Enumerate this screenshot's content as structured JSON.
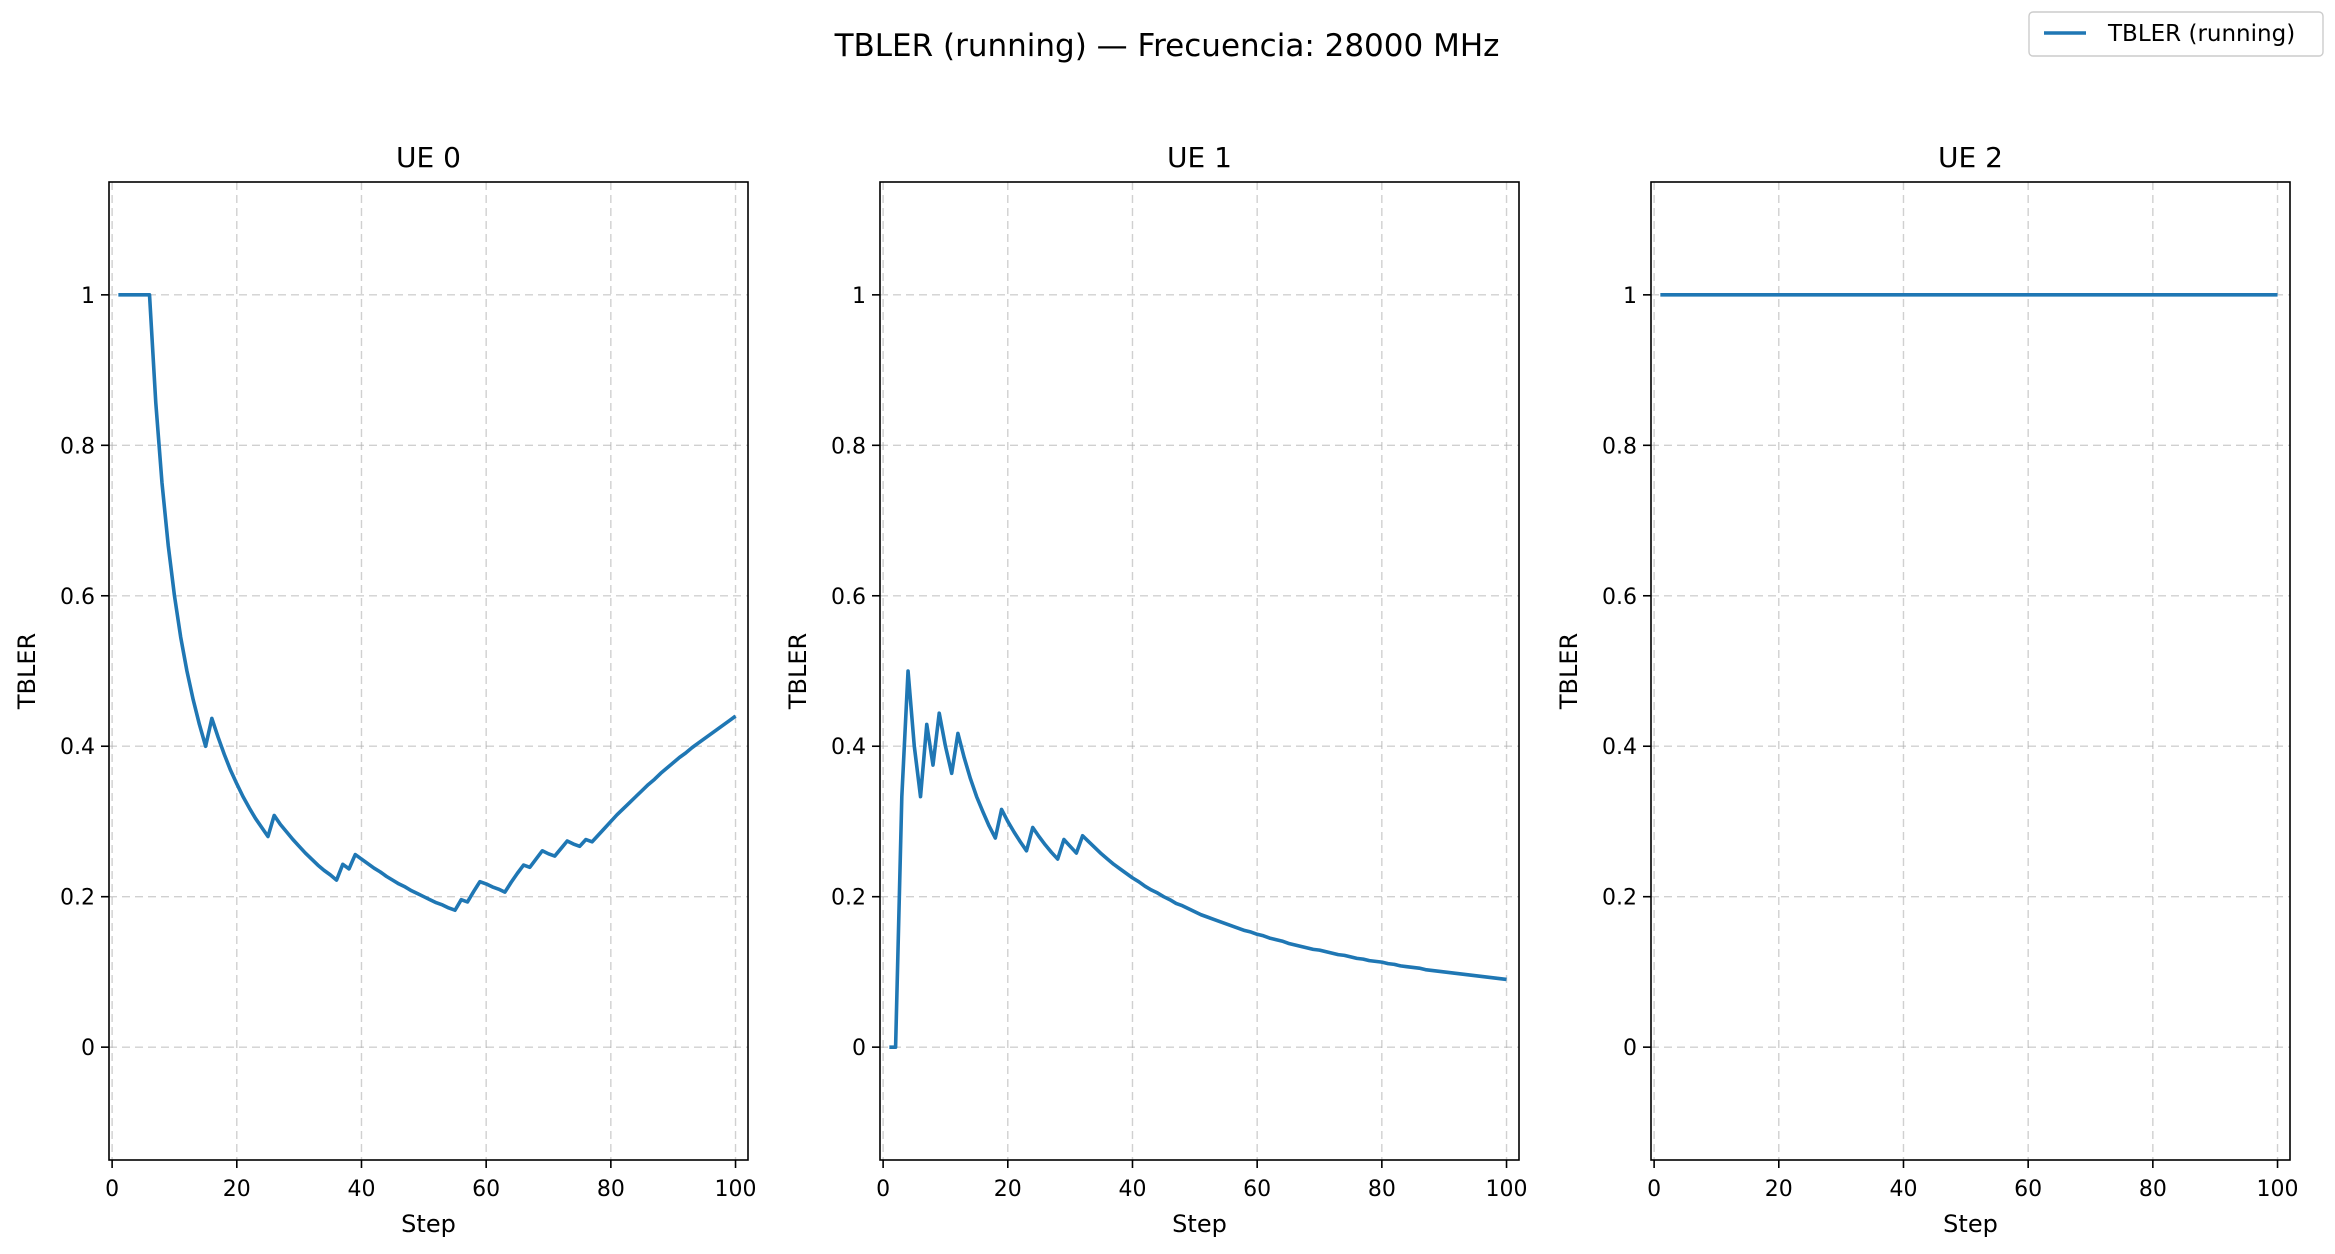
{
  "figure": {
    "title": "TBLER (running) — Frecuencia: 28000 MHz",
    "legend": {
      "label": "TBLER (running)",
      "placement": "upper-right"
    }
  },
  "colors": {
    "series": "#1f77b4",
    "grid": "#b0b0b0",
    "axes": "#000000"
  },
  "chart_data": [
    {
      "type": "line",
      "title": "UE 0",
      "xlabel": "Step",
      "ylabel": "TBLER",
      "xlim": [
        -0.5,
        102
      ],
      "ylim": [
        -0.15,
        1.15
      ],
      "xticks": [
        0,
        20,
        40,
        60,
        80,
        100
      ],
      "yticks": [
        0.0,
        0.2,
        0.4,
        0.6,
        0.8,
        1.0
      ],
      "grid": true,
      "series": [
        {
          "name": "TBLER (running)",
          "x": [
            1,
            2,
            3,
            4,
            5,
            6,
            7,
            8,
            9,
            10,
            11,
            12,
            13,
            14,
            15,
            16,
            17,
            18,
            19,
            20,
            21,
            22,
            23,
            24,
            25,
            26,
            27,
            28,
            29,
            30,
            31,
            32,
            33,
            34,
            35,
            36,
            37,
            38,
            39,
            40,
            41,
            42,
            43,
            44,
            45,
            46,
            47,
            48,
            49,
            50,
            51,
            52,
            53,
            54,
            55,
            56,
            57,
            58,
            59,
            60,
            61,
            62,
            63,
            64,
            65,
            66,
            67,
            68,
            69,
            70,
            71,
            72,
            73,
            74,
            75,
            76,
            77,
            78,
            79,
            80,
            81,
            82,
            83,
            84,
            85,
            86,
            87,
            88,
            89,
            90,
            91,
            92,
            93,
            94,
            95,
            96,
            97,
            98,
            99,
            100
          ],
          "y": [
            1.0,
            1.0,
            1.0,
            1.0,
            1.0,
            1.0,
            0.857,
            0.75,
            0.667,
            0.6,
            0.545,
            0.5,
            0.462,
            0.429,
            0.4,
            0.437,
            0.412,
            0.389,
            0.368,
            0.35,
            0.333,
            0.318,
            0.304,
            0.292,
            0.28,
            0.308,
            0.296,
            0.286,
            0.276,
            0.267,
            0.258,
            0.25,
            0.242,
            0.235,
            0.229,
            0.222,
            0.243,
            0.237,
            0.256,
            0.25,
            0.244,
            0.238,
            0.233,
            0.227,
            0.222,
            0.217,
            0.213,
            0.208,
            0.204,
            0.2,
            0.196,
            0.192,
            0.189,
            0.185,
            0.182,
            0.196,
            0.193,
            0.207,
            0.22,
            0.217,
            0.213,
            0.21,
            0.206,
            0.219,
            0.231,
            0.242,
            0.239,
            0.25,
            0.261,
            0.257,
            0.254,
            0.264,
            0.274,
            0.27,
            0.267,
            0.276,
            0.273,
            0.282,
            0.291,
            0.3,
            0.309,
            0.317,
            0.325,
            0.333,
            0.341,
            0.349,
            0.356,
            0.364,
            0.371,
            0.378,
            0.385,
            0.391,
            0.398,
            0.404,
            0.41,
            0.416,
            0.422,
            0.428,
            0.434,
            0.44
          ]
        }
      ]
    },
    {
      "type": "line",
      "title": "UE 1",
      "xlabel": "Step",
      "ylabel": "TBLER",
      "xlim": [
        -0.5,
        102
      ],
      "ylim": [
        -0.15,
        1.15
      ],
      "xticks": [
        0,
        20,
        40,
        60,
        80,
        100
      ],
      "yticks": [
        0.0,
        0.2,
        0.4,
        0.6,
        0.8,
        1.0
      ],
      "grid": true,
      "series": [
        {
          "name": "TBLER (running)",
          "x": [
            1,
            2,
            3,
            4,
            5,
            6,
            7,
            8,
            9,
            10,
            11,
            12,
            13,
            14,
            15,
            16,
            17,
            18,
            19,
            20,
            21,
            22,
            23,
            24,
            25,
            26,
            27,
            28,
            29,
            30,
            31,
            32,
            33,
            34,
            35,
            36,
            37,
            38,
            39,
            40,
            41,
            42,
            43,
            44,
            45,
            46,
            47,
            48,
            49,
            50,
            51,
            52,
            53,
            54,
            55,
            56,
            57,
            58,
            59,
            60,
            61,
            62,
            63,
            64,
            65,
            66,
            67,
            68,
            69,
            70,
            71,
            72,
            73,
            74,
            75,
            76,
            77,
            78,
            79,
            80,
            81,
            82,
            83,
            84,
            85,
            86,
            87,
            88,
            89,
            90,
            91,
            92,
            93,
            94,
            95,
            96,
            97,
            98,
            99,
            100
          ],
          "y": [
            0.0,
            0.0,
            0.333,
            0.5,
            0.4,
            0.333,
            0.429,
            0.375,
            0.444,
            0.4,
            0.364,
            0.417,
            0.385,
            0.357,
            0.333,
            0.313,
            0.294,
            0.278,
            0.316,
            0.3,
            0.286,
            0.273,
            0.261,
            0.292,
            0.28,
            0.269,
            0.259,
            0.25,
            0.276,
            0.267,
            0.258,
            0.281,
            0.273,
            0.265,
            0.257,
            0.25,
            0.243,
            0.237,
            0.231,
            0.225,
            0.22,
            0.214,
            0.209,
            0.205,
            0.2,
            0.196,
            0.191,
            0.188,
            0.184,
            0.18,
            0.176,
            0.173,
            0.17,
            0.167,
            0.164,
            0.161,
            0.158,
            0.155,
            0.153,
            0.15,
            0.148,
            0.145,
            0.143,
            0.141,
            0.138,
            0.136,
            0.134,
            0.132,
            0.13,
            0.129,
            0.127,
            0.125,
            0.123,
            0.122,
            0.12,
            0.118,
            0.117,
            0.115,
            0.114,
            0.113,
            0.111,
            0.11,
            0.108,
            0.107,
            0.106,
            0.105,
            0.103,
            0.102,
            0.101,
            0.1,
            0.099,
            0.098,
            0.097,
            0.096,
            0.095,
            0.094,
            0.093,
            0.092,
            0.091,
            0.09
          ]
        }
      ]
    },
    {
      "type": "line",
      "title": "UE 2",
      "xlabel": "Step",
      "ylabel": "TBLER",
      "xlim": [
        -0.5,
        102
      ],
      "ylim": [
        -0.15,
        1.15
      ],
      "xticks": [
        0,
        20,
        40,
        60,
        80,
        100
      ],
      "yticks": [
        0.0,
        0.2,
        0.4,
        0.6,
        0.8,
        1.0
      ],
      "grid": true,
      "series": [
        {
          "name": "TBLER (running)",
          "x": [
            1,
            100
          ],
          "y": [
            1.0,
            1.0
          ]
        }
      ]
    }
  ]
}
